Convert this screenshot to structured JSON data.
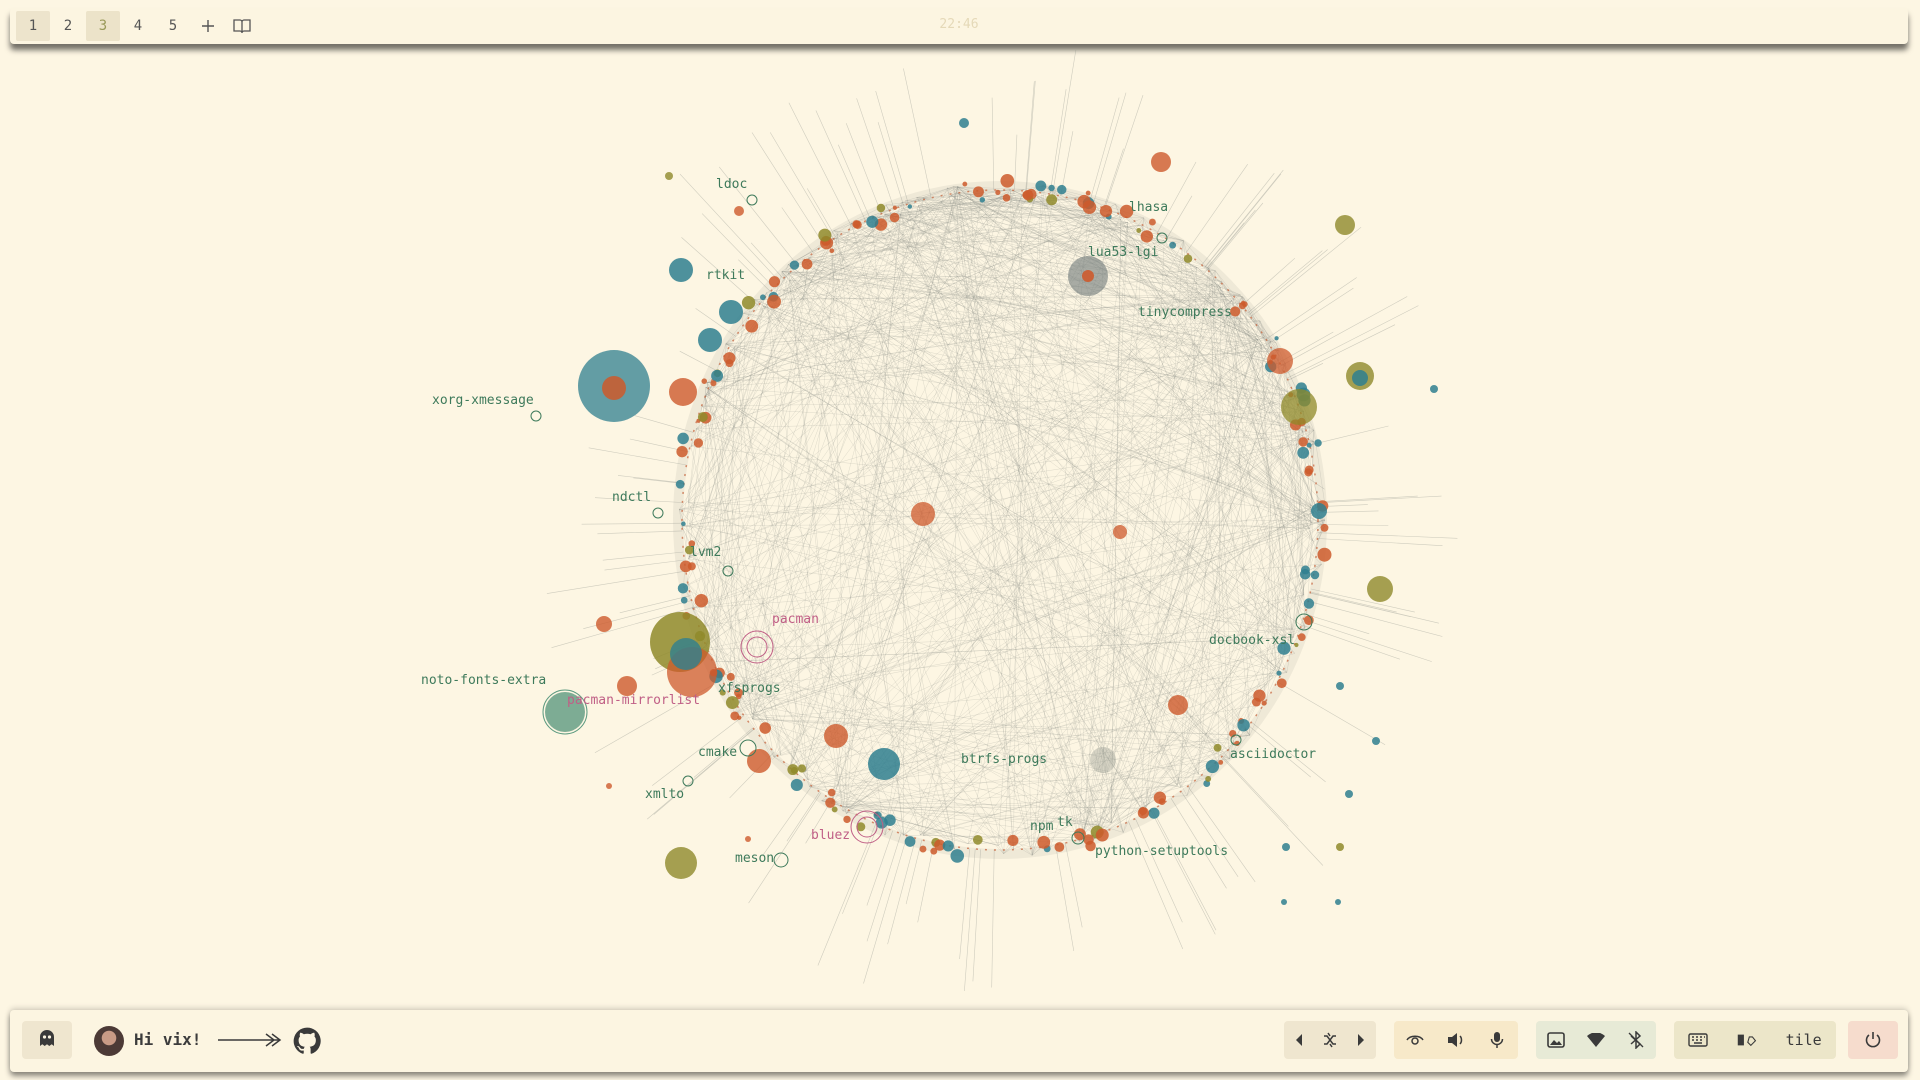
{
  "topbar": {
    "workspaces": [
      {
        "label": "1",
        "state": "active"
      },
      {
        "label": "2",
        "state": "normal"
      },
      {
        "label": "3",
        "state": "current"
      },
      {
        "label": "4",
        "state": "normal"
      },
      {
        "label": "5",
        "state": "normal"
      }
    ],
    "add_icon": "plus-icon",
    "overview_icon": "book-icon",
    "clock": "22:46"
  },
  "graph": {
    "label_color": "#3e7a5b",
    "highlight_label_color": "#c05f86",
    "labels": [
      {
        "text": "ldoc",
        "highlight": false
      },
      {
        "text": "lhasa",
        "highlight": false
      },
      {
        "text": "lua53-lgi",
        "highlight": false
      },
      {
        "text": "rtkit",
        "highlight": false
      },
      {
        "text": "tinycompress",
        "highlight": false
      },
      {
        "text": "xorg-xmessage",
        "highlight": false
      },
      {
        "text": "ndctl",
        "highlight": false
      },
      {
        "text": "lvm2",
        "highlight": false
      },
      {
        "text": "pacman",
        "highlight": true
      },
      {
        "text": "docbook-xsl",
        "highlight": false
      },
      {
        "text": "noto-fonts-extra",
        "highlight": false
      },
      {
        "text": "pacman-mirrorlist",
        "highlight": true
      },
      {
        "text": "xfsprogs",
        "highlight": false
      },
      {
        "text": "cmake",
        "highlight": false
      },
      {
        "text": "btrfs-progs",
        "highlight": false
      },
      {
        "text": "asciidoctor",
        "highlight": false
      },
      {
        "text": "xmlto",
        "highlight": false
      },
      {
        "text": "bluez",
        "highlight": true
      },
      {
        "text": "npm",
        "highlight": false
      },
      {
        "text": "tk",
        "highlight": false
      },
      {
        "text": "python-setuptools",
        "highlight": false
      },
      {
        "text": "meson",
        "highlight": false
      }
    ],
    "colors": {
      "orange": "#cd5a2c",
      "teal": "#2f7f8f",
      "olive": "#8f8a2a",
      "edge": "#8a8f86"
    }
  },
  "bottombar": {
    "launcher_icon": "ghost-icon",
    "avatar_icon": "avatar",
    "greeting": "Hi vix!",
    "github_icon": "github-icon",
    "media": [
      "prev-icon",
      "shuffle-icon",
      "next-icon"
    ],
    "audio": [
      "eye-icon",
      "volume-icon",
      "microphone-icon"
    ],
    "network": [
      "screenshot-icon",
      "wifi-icon",
      "bluetooth-icon"
    ],
    "layout": {
      "keyboard_icon": "keyboard-icon",
      "layout_icon": "layout-icon",
      "label": "tile"
    },
    "power_icon": "power-icon"
  }
}
